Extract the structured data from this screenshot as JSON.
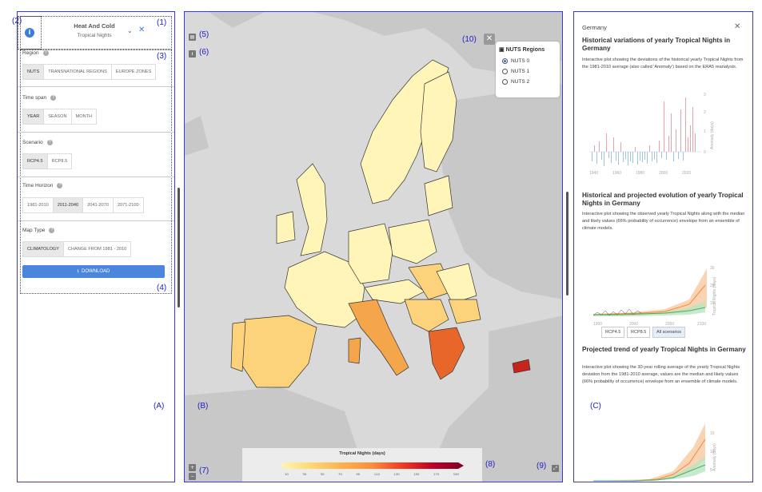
{
  "annotations": {
    "a1": "(1)",
    "a2": "(2)",
    "a3": "(3)",
    "a4": "(4)",
    "a5": "(5)",
    "a6": "(6)",
    "a7": "(7)",
    "a8": "(8)",
    "a9": "(9)",
    "a10": "(10)",
    "A": "(A)",
    "B": "(B)",
    "C": "(C)"
  },
  "left_panel": {
    "title": "Heat And Cold",
    "subtitle": "Tropical Nights",
    "region": {
      "label": "Region",
      "options": [
        "NUTS",
        "TRANSNATIONAL REGIONS",
        "EUROPE ZONES"
      ],
      "selected": 0
    },
    "time_span": {
      "label": "Time span",
      "options": [
        "YEAR",
        "SEASON",
        "MONTH"
      ],
      "selected": 0
    },
    "scenario": {
      "label": "Scenario",
      "options": [
        "RCP4.5",
        "RCP8.5"
      ],
      "selected": 0
    },
    "time_horizon": {
      "label": "Time Horizon",
      "options": [
        "1981-2010",
        "2011-2040",
        "2041-2070",
        "2071-2100"
      ],
      "selected": 1
    },
    "map_type": {
      "label": "Map Type",
      "options": [
        "CLIMATOLOGY",
        "CHANGE FROM 1981 - 2010"
      ],
      "selected": 0
    },
    "download_label": "DOWNLOAD"
  },
  "map": {
    "nuts_title": "NUTS Regions",
    "nuts_options": [
      "NUTS 0",
      "NUTS 1",
      "NUTS 2"
    ],
    "nuts_selected": 0,
    "legend_title": "Tropical Nights (days)",
    "legend_ticks": [
      "10",
      "30",
      "50",
      "70",
      "90",
      "110",
      "130",
      "150",
      "170",
      "190"
    ],
    "colors": {
      "sea": "#d9d9d9",
      "land_other": "#c4c4c4",
      "low": "#fff5b8",
      "mid": "#fcd27a",
      "high": "#f5a54a",
      "very_high": "#e8662a",
      "max": "#c8241b"
    }
  },
  "right_panel": {
    "country": "Germany",
    "section1": {
      "title": "Historical variations of yearly Tropical Nights in Germany",
      "text": "Interactive plot showing the deviations of the historical yearly Tropical Nights from the 1981-2010 average (also called 'Anomaly') based on the ERA5 reanalysis.",
      "ylabel": "Anomaly (days)",
      "x_ticks": [
        "1940",
        "1960",
        "1980",
        "2000",
        "2020"
      ],
      "y_ticks": [
        "3",
        "2",
        "1",
        "0"
      ]
    },
    "section2": {
      "title": "Historical and projected evolution of yearly Tropical Nights in Germany",
      "text": "Interactive plot showing the observed yearly Tropical Nights along with the median and likely values (66% probability of occurrence) envelope from an ensemble of climate models.",
      "ylabel": "Tropical Nights (days)",
      "x_ticks": [
        "1950",
        "2000",
        "2050",
        "2100"
      ],
      "y_ticks": [
        "30",
        "20",
        "10"
      ],
      "buttons": [
        "RCP4.5",
        "RCP8.5",
        "All scenarios"
      ]
    },
    "section3": {
      "title": "Projected trend of yearly Tropical Nights in Germany",
      "text": "Interactive plot showing the 30-year rolling average of the yearly Tropical Nights deviation from the 1981-2010 average, values are the median and likely values (66% probability of occurrence) envelope from an ensemble of climate models.",
      "ylabel": "Anomaly (days)",
      "y_ticks": [
        "15",
        "10",
        "5"
      ]
    }
  }
}
